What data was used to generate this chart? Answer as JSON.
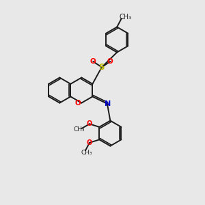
{
  "bg_color": "#e8e8e8",
  "bond_color": "#1a1a1a",
  "o_color": "#ff0000",
  "n_color": "#0000cc",
  "s_color": "#b8b800",
  "figsize": [
    3.0,
    3.0
  ],
  "dpi": 100,
  "lw": 1.4,
  "lw_inner": 1.2,
  "off": 0.07,
  "xlim": [
    0,
    10
  ],
  "ylim": [
    0,
    10
  ]
}
